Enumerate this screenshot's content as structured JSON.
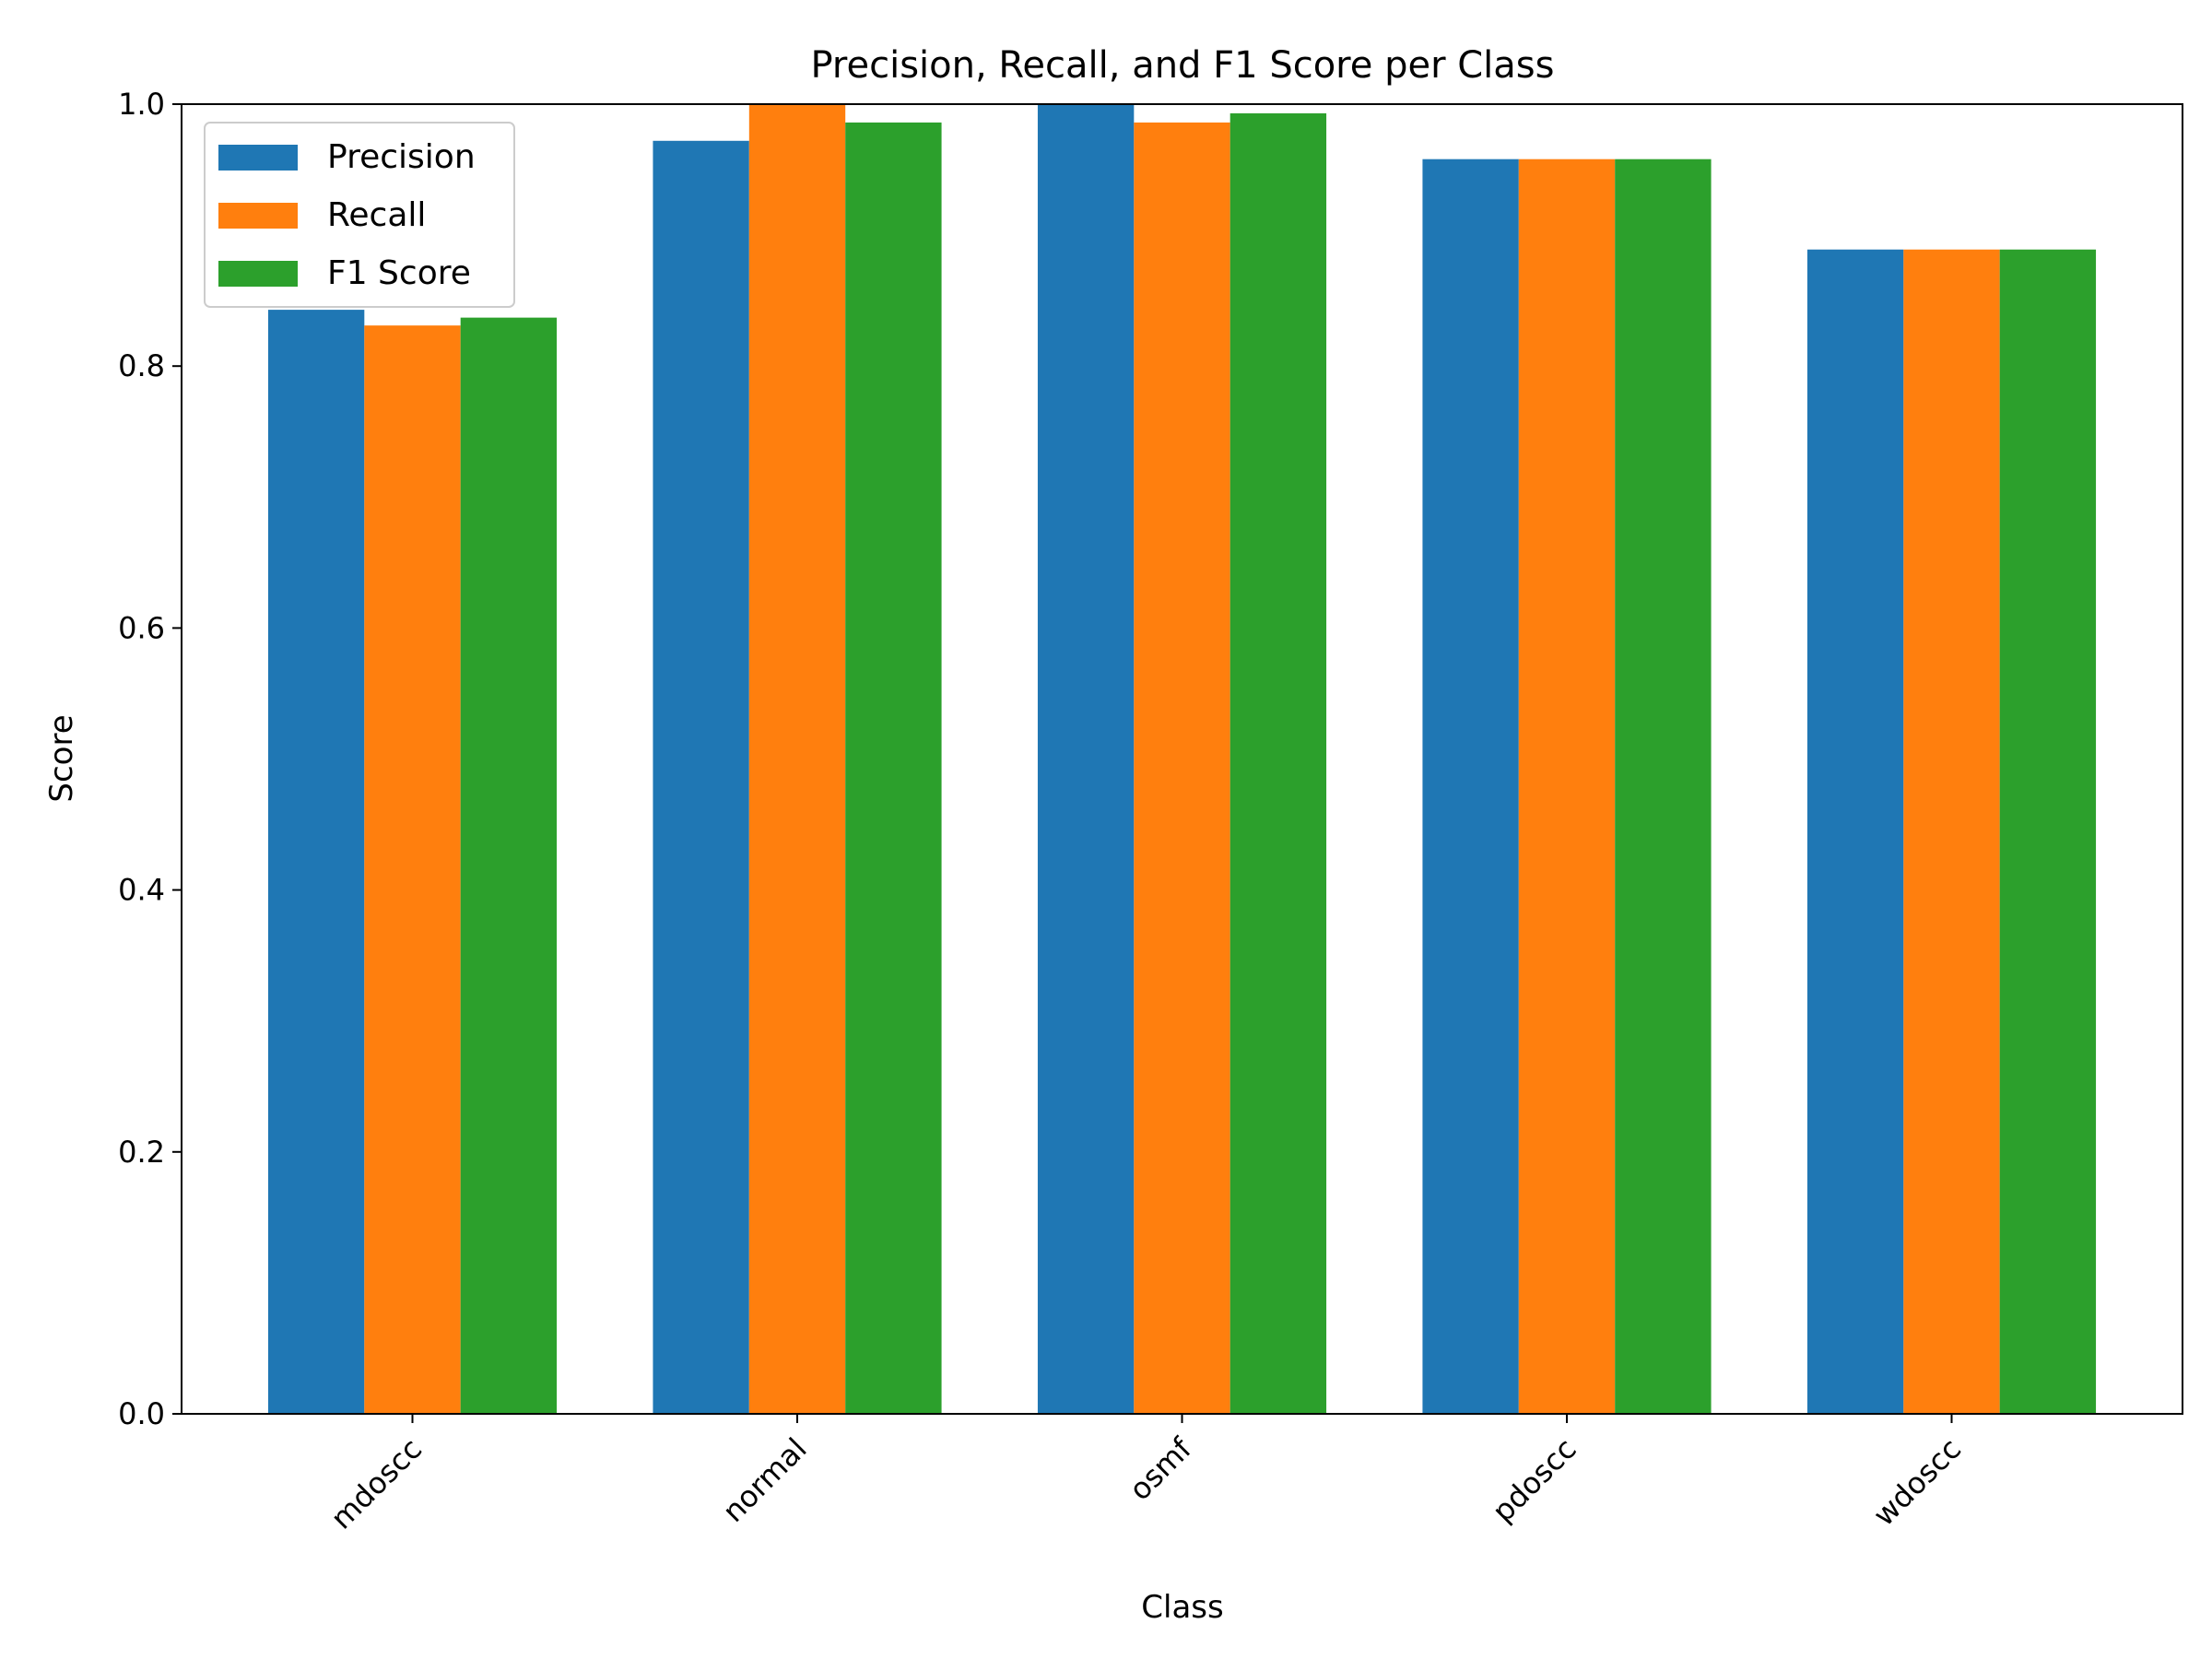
{
  "chart_data": {
    "type": "bar",
    "title": "Precision, Recall, and F1 Score per Class",
    "xlabel": "Class",
    "ylabel": "Score",
    "ylim": [
      0,
      1.0
    ],
    "yticks": [
      "0.0",
      "0.2",
      "0.4",
      "0.6",
      "0.8",
      "1.0"
    ],
    "categories": [
      "mdoscc",
      "normal",
      "osmf",
      "pdoscc",
      "wdoscc"
    ],
    "series": [
      {
        "name": "Precision",
        "color": "#1f77b4",
        "values": [
          0.843,
          0.972,
          1.0,
          0.958,
          0.889
        ]
      },
      {
        "name": "Recall",
        "color": "#ff7f0e",
        "values": [
          0.831,
          1.0,
          0.986,
          0.958,
          0.889
        ]
      },
      {
        "name": "F1 Score",
        "color": "#2ca02c",
        "values": [
          0.837,
          0.986,
          0.993,
          0.958,
          0.889
        ]
      }
    ],
    "grid": false,
    "legend": "top-left"
  }
}
